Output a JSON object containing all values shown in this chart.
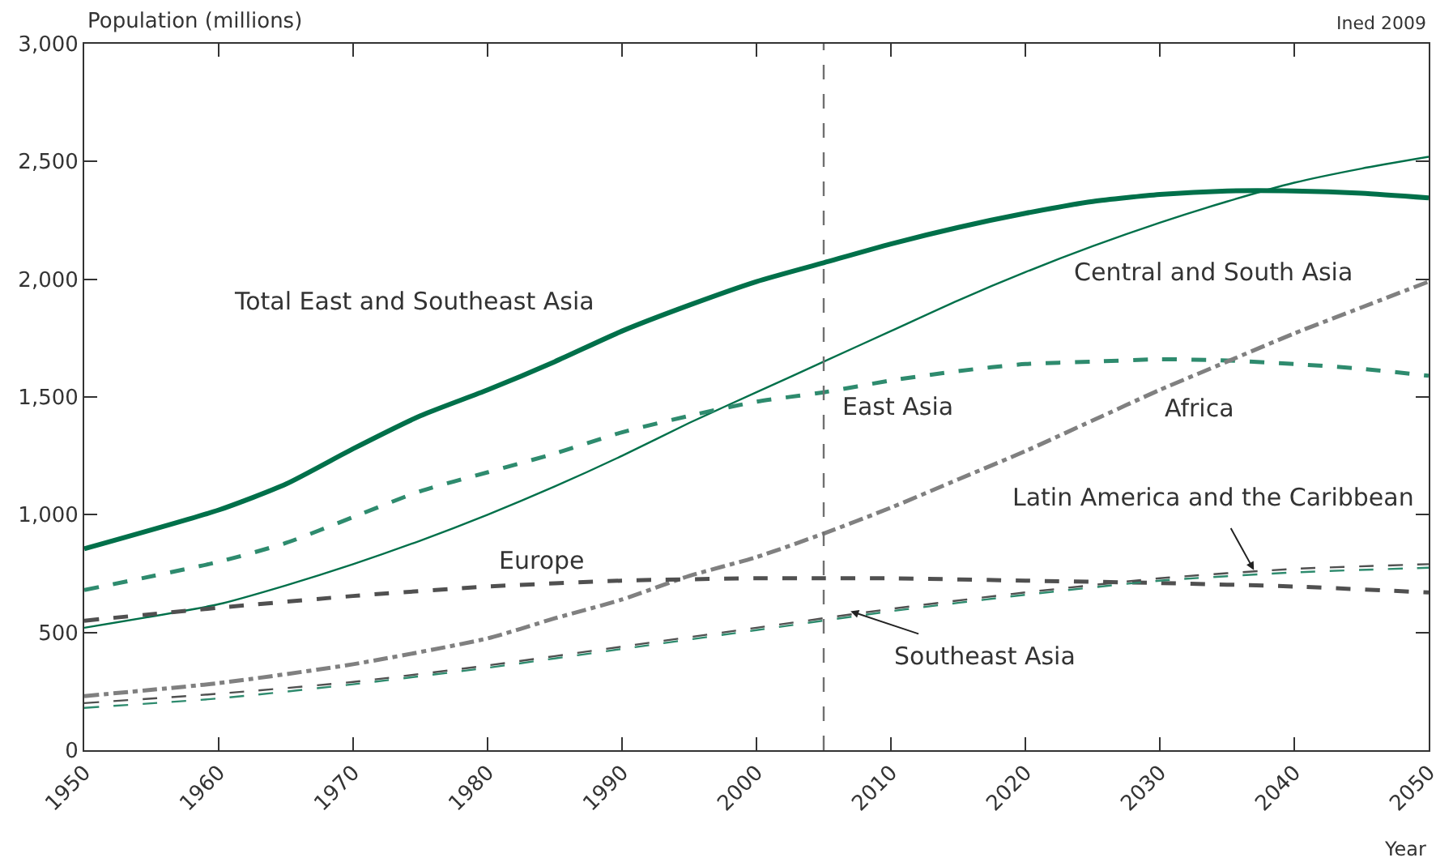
{
  "chart_data": {
    "type": "line",
    "xlabel": "Year",
    "ylabel": "Population (millions)",
    "annotations": [
      "Ined 2009"
    ],
    "xlim": [
      1950,
      2050
    ],
    "xticks": [
      1950,
      1960,
      1970,
      1980,
      1990,
      2000,
      2010,
      2020,
      2030,
      2040,
      2050
    ],
    "ylim": [
      0,
      3000
    ],
    "yticks": [
      0,
      500,
      {
        "value": 1000,
        "label": "1,000"
      },
      {
        "value": 1500,
        "label": "1,500"
      },
      {
        "value": 2000,
        "label": "2,000"
      },
      {
        "value": 2500,
        "label": "2,500"
      },
      {
        "value": 3000,
        "label": "3,000"
      }
    ],
    "grid": false,
    "legend": false,
    "marker": "none",
    "ref_lines": [
      {
        "axis": "x",
        "value": 2005,
        "color": "#707070",
        "line_style": "dashed"
      }
    ],
    "series": [
      {
        "name": "Total East and Southeast Asia",
        "color": "#00704a",
        "line_style": "solid",
        "x": [
          1950,
          1960,
          1965,
          1970,
          1975,
          1980,
          1985,
          1990,
          1995,
          2000,
          2005,
          2010,
          2015,
          2020,
          2025,
          2030,
          2035,
          2040,
          2045,
          2050
        ],
        "values": [
          855,
          1020,
          1130,
          1280,
          1420,
          1530,
          1650,
          1780,
          1890,
          1990,
          2070,
          2150,
          2220,
          2280,
          2330,
          2360,
          2375,
          2375,
          2365,
          2345
        ]
      },
      {
        "name": "Central and South Asia",
        "color": "#00704a",
        "line_style": "solid",
        "x": [
          1950,
          1960,
          1965,
          1970,
          1975,
          1980,
          1985,
          1990,
          1995,
          2000,
          2005,
          2010,
          2015,
          2020,
          2025,
          2030,
          2035,
          2040,
          2045,
          2050
        ],
        "values": [
          520,
          620,
          700,
          790,
          890,
          1000,
          1120,
          1250,
          1390,
          1520,
          1650,
          1780,
          1910,
          2030,
          2140,
          2240,
          2330,
          2410,
          2470,
          2520
        ]
      },
      {
        "name": "East Asia",
        "color": "#2e8b6e",
        "line_style": "dashed",
        "x": [
          1950,
          1960,
          1965,
          1970,
          1975,
          1980,
          1985,
          1990,
          1995,
          2000,
          2005,
          2010,
          2015,
          2020,
          2025,
          2030,
          2035,
          2040,
          2045,
          2050
        ],
        "values": [
          680,
          800,
          880,
          990,
          1100,
          1180,
          1260,
          1350,
          1420,
          1480,
          1520,
          1570,
          1610,
          1640,
          1650,
          1660,
          1655,
          1640,
          1620,
          1590
        ]
      },
      {
        "name": "Africa",
        "color": "#808080",
        "line_style": "dashdot",
        "x": [
          1950,
          1960,
          1970,
          1980,
          1985,
          1990,
          1995,
          2000,
          2005,
          2010,
          2015,
          2020,
          2025,
          2030,
          2035,
          2040,
          2045,
          2050
        ],
        "values": [
          230,
          285,
          365,
          475,
          560,
          640,
          740,
          820,
          920,
          1030,
          1150,
          1270,
          1400,
          1530,
          1650,
          1770,
          1880,
          1990
        ]
      },
      {
        "name": "Europe",
        "color": "#505050",
        "line_style": "dashed",
        "x": [
          1950,
          1960,
          1970,
          1980,
          1990,
          2000,
          2005,
          2010,
          2020,
          2030,
          2040,
          2050
        ],
        "values": [
          550,
          605,
          655,
          695,
          720,
          730,
          730,
          730,
          720,
          710,
          695,
          670
        ]
      },
      {
        "name": "Latin America and the Caribbean",
        "color": "#505050",
        "line_style": "dashed",
        "x": [
          1950,
          1960,
          1970,
          1980,
          1990,
          2000,
          2010,
          2020,
          2030,
          2040,
          2050
        ],
        "values": [
          200,
          240,
          290,
          360,
          440,
          520,
          600,
          670,
          730,
          770,
          790
        ]
      },
      {
        "name": "Southeast Asia",
        "color": "#2e8b6e",
        "line_style": "dashed",
        "x": [
          1950,
          1960,
          1970,
          1980,
          1990,
          2000,
          2010,
          2020,
          2030,
          2040,
          2050
        ],
        "values": [
          180,
          220,
          280,
          350,
          430,
          510,
          590,
          660,
          720,
          755,
          775
        ]
      }
    ]
  }
}
